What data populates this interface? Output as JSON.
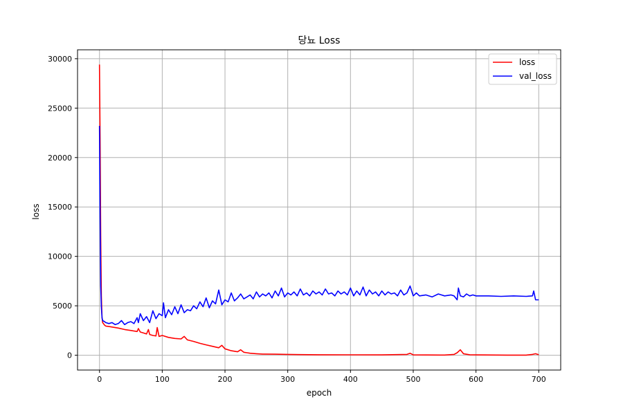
{
  "chart_data": {
    "type": "line",
    "title": "당뇨 Loss",
    "xlabel": "epoch",
    "ylabel": "loss",
    "xlim": [
      -35,
      735
    ],
    "ylim": [
      -1500,
      30900
    ],
    "xticks": [
      0,
      100,
      200,
      300,
      400,
      500,
      600,
      700
    ],
    "yticks": [
      0,
      5000,
      10000,
      15000,
      20000,
      25000,
      30000
    ],
    "grid": true,
    "legend": "upper right",
    "series": [
      {
        "name": "loss",
        "color": "#ff0000",
        "x": [
          0,
          1,
          2,
          3,
          4,
          5,
          8,
          10,
          15,
          20,
          30,
          40,
          50,
          60,
          62,
          65,
          70,
          75,
          78,
          80,
          85,
          90,
          92,
          95,
          100,
          110,
          120,
          130,
          135,
          140,
          150,
          160,
          170,
          180,
          190,
          195,
          200,
          210,
          220,
          225,
          230,
          235,
          240,
          250,
          260,
          280,
          300,
          320,
          350,
          400,
          450,
          490,
          495,
          500,
          550,
          565,
          570,
          575,
          580,
          590,
          600,
          650,
          680,
          690,
          695,
          700
        ],
        "y": [
          29400,
          22000,
          12000,
          6000,
          3800,
          3300,
          3050,
          2950,
          2900,
          2850,
          2750,
          2600,
          2500,
          2400,
          2700,
          2350,
          2250,
          2150,
          2600,
          2100,
          2000,
          1950,
          2800,
          1900,
          2000,
          1800,
          1700,
          1650,
          1900,
          1550,
          1400,
          1200,
          1050,
          900,
          750,
          1000,
          650,
          450,
          350,
          550,
          300,
          250,
          200,
          150,
          120,
          100,
          80,
          60,
          50,
          40,
          30,
          80,
          200,
          30,
          20,
          80,
          250,
          550,
          150,
          50,
          30,
          15,
          15,
          80,
          150,
          50
        ]
      },
      {
        "name": "val_loss",
        "color": "#0000ff",
        "x": [
          0,
          1,
          2,
          3,
          4,
          5,
          8,
          10,
          15,
          20,
          25,
          30,
          35,
          40,
          45,
          50,
          55,
          60,
          62,
          65,
          70,
          75,
          80,
          85,
          90,
          95,
          100,
          102,
          105,
          110,
          115,
          120,
          125,
          130,
          135,
          140,
          145,
          150,
          155,
          160,
          165,
          170,
          175,
          180,
          185,
          190,
          195,
          200,
          205,
          210,
          215,
          220,
          225,
          230,
          235,
          240,
          245,
          250,
          255,
          260,
          265,
          270,
          275,
          280,
          285,
          290,
          295,
          300,
          305,
          310,
          315,
          320,
          325,
          330,
          335,
          340,
          345,
          350,
          355,
          360,
          365,
          370,
          375,
          380,
          385,
          390,
          395,
          400,
          405,
          410,
          415,
          420,
          425,
          430,
          435,
          440,
          445,
          450,
          455,
          460,
          465,
          470,
          475,
          480,
          485,
          490,
          495,
          500,
          505,
          510,
          520,
          530,
          540,
          550,
          560,
          565,
          570,
          572,
          575,
          580,
          585,
          590,
          595,
          600,
          620,
          640,
          660,
          680,
          690,
          692,
          695,
          700
        ],
        "y": [
          23200,
          14000,
          7000,
          4900,
          3800,
          3500,
          3400,
          3300,
          3200,
          3300,
          3100,
          3200,
          3500,
          3100,
          3300,
          3400,
          3200,
          3800,
          3300,
          4200,
          3500,
          3900,
          3300,
          4500,
          3700,
          4200,
          4000,
          5300,
          3800,
          4600,
          4100,
          4900,
          4200,
          5100,
          4300,
          4600,
          4500,
          5000,
          4700,
          5400,
          4900,
          5800,
          4800,
          5500,
          5200,
          6600,
          5100,
          5600,
          5400,
          6300,
          5500,
          5800,
          6200,
          5700,
          5900,
          6100,
          5700,
          6400,
          5900,
          6200,
          6000,
          6300,
          5800,
          6500,
          6000,
          6800,
          5900,
          6300,
          6100,
          6400,
          6000,
          6700,
          6100,
          6300,
          6000,
          6500,
          6200,
          6400,
          6100,
          6700,
          6200,
          6300,
          6000,
          6500,
          6200,
          6400,
          6100,
          6800,
          6000,
          6500,
          6100,
          6900,
          6000,
          6600,
          6200,
          6400,
          6000,
          6500,
          6100,
          6400,
          6200,
          6300,
          6000,
          6600,
          6100,
          6300,
          7000,
          6000,
          6300,
          6000,
          6100,
          5900,
          6200,
          6000,
          6100,
          6000,
          5600,
          6800,
          6000,
          5900,
          6200,
          6000,
          6100,
          6000,
          6000,
          5950,
          6000,
          5950,
          6000,
          6500,
          5600,
          5600
        ]
      }
    ]
  }
}
